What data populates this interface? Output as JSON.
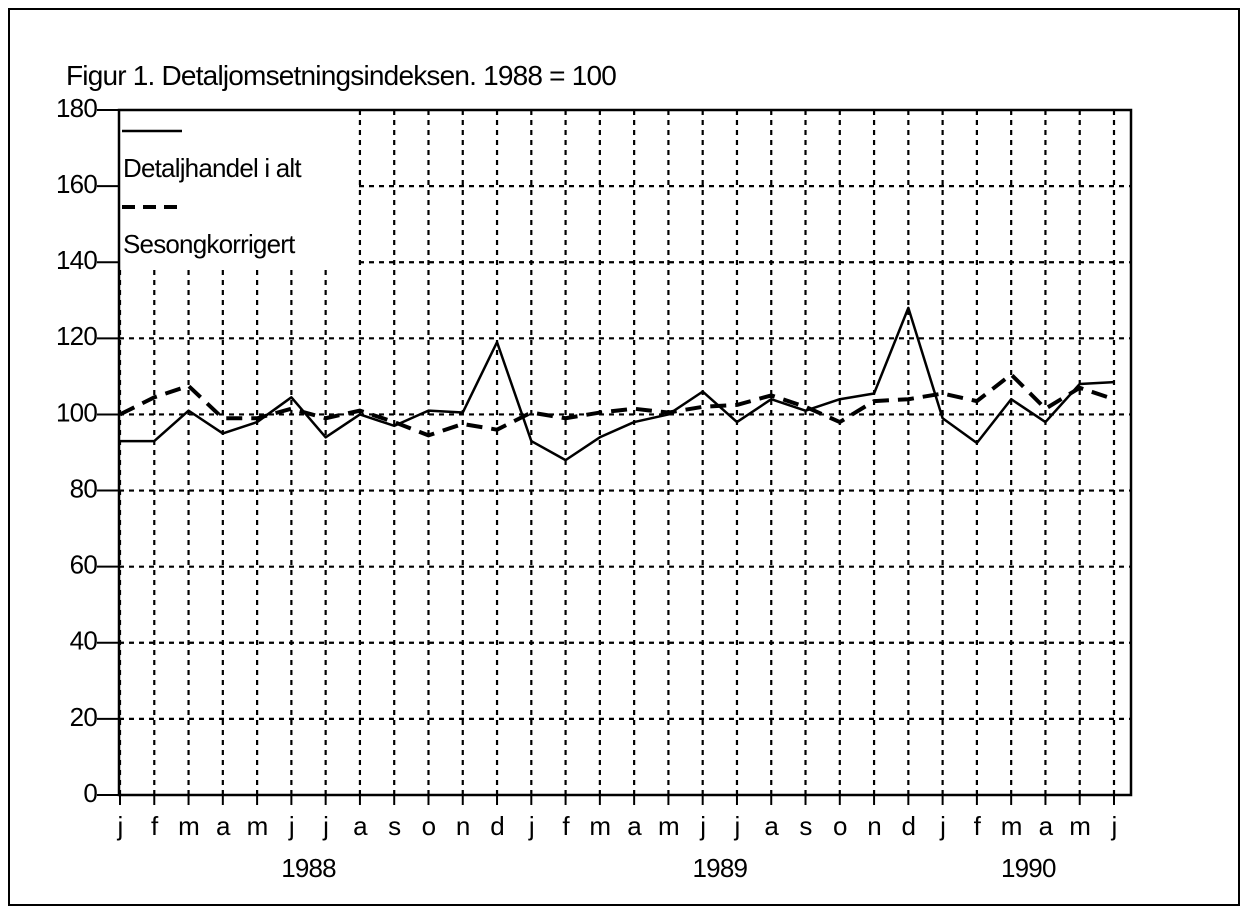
{
  "chart_data": {
    "type": "line",
    "title": "Figur 1. Detaljomsetningsindeksen. 1988 = 100",
    "categories": [
      "j",
      "f",
      "m",
      "a",
      "m",
      "j",
      "j",
      "a",
      "s",
      "o",
      "n",
      "d",
      "j",
      "f",
      "m",
      "a",
      "m",
      "j",
      "j",
      "a",
      "s",
      "o",
      "n",
      "d",
      "j",
      "f",
      "m",
      "a",
      "m",
      "j"
    ],
    "years": [
      "1988",
      "1989",
      "1990"
    ],
    "series": [
      {
        "name": "Detaljhandel i alt",
        "color": "#000000",
        "linestyle": "solid",
        "values": [
          93,
          93,
          101,
          95,
          98,
          104.5,
          94,
          100,
          97,
          101,
          100.5,
          119,
          93,
          88,
          94,
          98,
          100,
          106,
          98,
          104,
          101,
          104,
          105.5,
          128,
          99,
          92.5,
          104,
          98,
          108,
          108.5
        ]
      },
      {
        "name": "Sesongkorrigert",
        "color": "#000000",
        "linestyle": "dashed",
        "values": [
          100,
          104.5,
          107.5,
          99,
          99,
          101.5,
          99,
          101,
          98,
          94.5,
          97.5,
          96,
          100.5,
          99,
          100.5,
          101.5,
          100.5,
          102,
          102.5,
          105,
          102,
          98,
          103.5,
          104,
          105.5,
          103.5,
          110.5,
          101.5,
          107,
          104
        ]
      }
    ],
    "ylim": [
      0,
      180
    ],
    "yticks": [
      0,
      20,
      40,
      60,
      80,
      100,
      120,
      140,
      160,
      180
    ],
    "grid": true,
    "legend": "upper left"
  }
}
